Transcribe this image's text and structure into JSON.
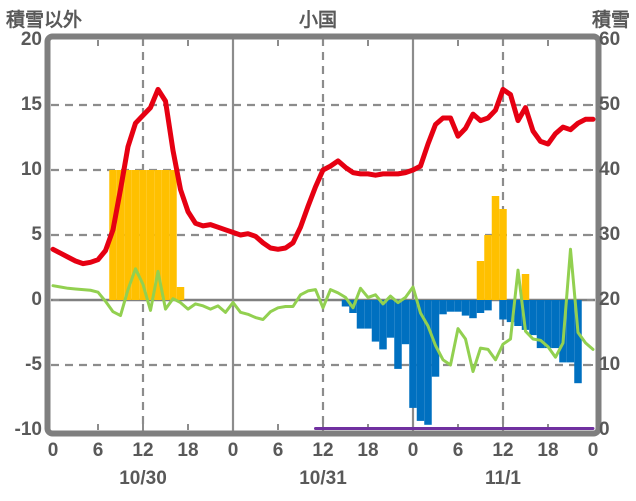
{
  "header": {
    "left_axis_title": "積雪以外",
    "station_title": "小国",
    "right_axis_title": "積雪"
  },
  "colors": {
    "temperature_line": "#e60012",
    "green_line": "#92d050",
    "orange_bars": "#ffc000",
    "blue_bars": "#0070c0",
    "snow_depth_line": "#7030a0",
    "grid": "#8c8c8c",
    "zero_line": "#808080",
    "border": "#7f7f7f",
    "text": "#595959"
  },
  "chart_data": {
    "type": "bar",
    "subtype": "mixed line+bar, hourly data over 3 days",
    "title": "小国",
    "x_hours_total": 72,
    "left_axis": {
      "title": "積雪以外",
      "range": [
        -10,
        20
      ],
      "ticks": [
        20,
        15,
        10,
        5,
        0,
        -5,
        -10
      ]
    },
    "right_axis": {
      "title": "積雪",
      "range": [
        0,
        60
      ],
      "ticks": [
        60,
        50,
        40,
        30,
        20,
        10,
        0
      ]
    },
    "x_axis": {
      "hour_tick_step": 6,
      "hour_tick_labels": [
        "0",
        "6",
        "12",
        "18",
        "0",
        "6",
        "12",
        "18",
        "0",
        "6",
        "12",
        "18",
        "0"
      ],
      "date_labels": [
        "10/30",
        "10/31",
        "11/1"
      ],
      "date_label_center_hours": [
        12,
        36,
        60
      ],
      "solid_vlines_hours": [
        24,
        48
      ],
      "dashed_vlines_hours": [
        12,
        36,
        60
      ],
      "dashed_hlines_values": [
        15,
        10,
        5,
        -5
      ],
      "solid_hline_value": 0
    },
    "series": [
      {
        "name": "temperature-red-line",
        "type": "line",
        "axis": "left",
        "color": "#e60012",
        "width": 5,
        "values": [
          3.9,
          3.6,
          3.3,
          3.0,
          2.8,
          2.9,
          3.1,
          3.8,
          5.4,
          8.5,
          11.8,
          13.6,
          14.2,
          14.8,
          16.2,
          15.3,
          11.5,
          8.5,
          6.8,
          5.9,
          5.7,
          5.8,
          5.6,
          5.4,
          5.2,
          5.0,
          5.1,
          4.9,
          4.4,
          4.0,
          3.9,
          4.0,
          4.4,
          5.6,
          7.2,
          8.7,
          10.0,
          10.3,
          10.7,
          10.2,
          9.8,
          9.7,
          9.7,
          9.6,
          9.7,
          9.7,
          9.7,
          9.8,
          10.0,
          10.3,
          12.0,
          13.5,
          14.0,
          14.0,
          12.6,
          13.2,
          14.3,
          13.8,
          14.0,
          14.6,
          16.2,
          15.8,
          13.8,
          14.8,
          13.0,
          12.2,
          12.0,
          12.8,
          13.3,
          13.1,
          13.6,
          13.9,
          13.9
        ]
      },
      {
        "name": "green-line",
        "type": "line",
        "axis": "left",
        "color": "#92d050",
        "width": 3,
        "values": [
          1.1,
          1.0,
          0.9,
          0.85,
          0.8,
          0.75,
          0.6,
          -0.1,
          -0.9,
          -1.2,
          0.8,
          2.4,
          1.2,
          -0.8,
          2.2,
          -0.7,
          0.1,
          -0.2,
          -0.7,
          -0.3,
          -0.45,
          -0.7,
          -0.45,
          -0.95,
          -0.2,
          -0.95,
          -1.1,
          -1.35,
          -1.5,
          -0.9,
          -0.6,
          -0.5,
          -0.5,
          0.4,
          0.7,
          0.8,
          -0.6,
          0.8,
          0.55,
          0.2,
          -0.6,
          0.9,
          0.2,
          0.4,
          -0.3,
          0.3,
          -0.2,
          0.2,
          1.0,
          -1.0,
          -2.0,
          -3.5,
          -4.6,
          -5.0,
          -2.2,
          -3.0,
          -5.5,
          -3.7,
          -3.8,
          -4.6,
          -3.4,
          -3.0,
          2.3,
          -2.4,
          -3.0,
          -3.1,
          -3.6,
          -4.4,
          -3.3,
          3.9,
          -2.5,
          -3.3,
          -3.8
        ]
      },
      {
        "name": "orange-bars",
        "type": "bar",
        "axis": "left",
        "color": "#ffc000",
        "values": [
          null,
          null,
          null,
          null,
          null,
          null,
          null,
          null,
          10,
          10,
          10,
          10,
          10,
          10,
          10,
          10,
          10,
          1,
          null,
          null,
          null,
          null,
          null,
          null,
          null,
          null,
          null,
          null,
          null,
          null,
          null,
          null,
          null,
          null,
          null,
          null,
          null,
          null,
          null,
          null,
          null,
          null,
          null,
          null,
          null,
          null,
          null,
          null,
          null,
          null,
          null,
          null,
          null,
          null,
          null,
          null,
          null,
          3,
          5,
          8,
          7,
          null,
          null,
          2,
          null,
          null,
          null,
          null,
          null,
          null,
          null,
          null,
          null
        ]
      },
      {
        "name": "blue-bars",
        "type": "bar",
        "axis": "left",
        "color": "#0070c0",
        "values": [
          null,
          null,
          null,
          null,
          null,
          null,
          null,
          null,
          null,
          null,
          null,
          null,
          null,
          null,
          null,
          null,
          null,
          null,
          null,
          null,
          null,
          null,
          null,
          null,
          null,
          null,
          null,
          null,
          null,
          null,
          null,
          null,
          null,
          null,
          null,
          null,
          null,
          null,
          null,
          -0.5,
          -1.0,
          -2.2,
          -2.2,
          -3.2,
          -3.8,
          -2.9,
          -5.3,
          -3.4,
          -8.3,
          -9.3,
          -9.6,
          -5.9,
          -1.1,
          -0.9,
          -0.9,
          -1.2,
          -1.4,
          -1.0,
          -0.8,
          null,
          -1.5,
          -1.7,
          -2.0,
          -2.3,
          -2.7,
          -3.7,
          -3.7,
          -3.7,
          -4.8,
          -4.8,
          -6.4,
          null,
          null
        ]
      },
      {
        "name": "snow-depth-purple-line",
        "type": "line",
        "axis": "right",
        "color": "#7030a0",
        "width": 3,
        "values": [
          null,
          null,
          null,
          null,
          null,
          null,
          null,
          null,
          null,
          null,
          null,
          null,
          null,
          null,
          null,
          null,
          null,
          null,
          null,
          null,
          null,
          null,
          null,
          null,
          null,
          null,
          null,
          null,
          null,
          null,
          null,
          null,
          null,
          null,
          null,
          0,
          0,
          0,
          0,
          0,
          0,
          0,
          0,
          0,
          0,
          0,
          0,
          0,
          0,
          0,
          0,
          0,
          0,
          0,
          0,
          0,
          0,
          0,
          0,
          0,
          0,
          0,
          0,
          0,
          0,
          0,
          0,
          0,
          0,
          0,
          0,
          0,
          0
        ]
      }
    ]
  }
}
